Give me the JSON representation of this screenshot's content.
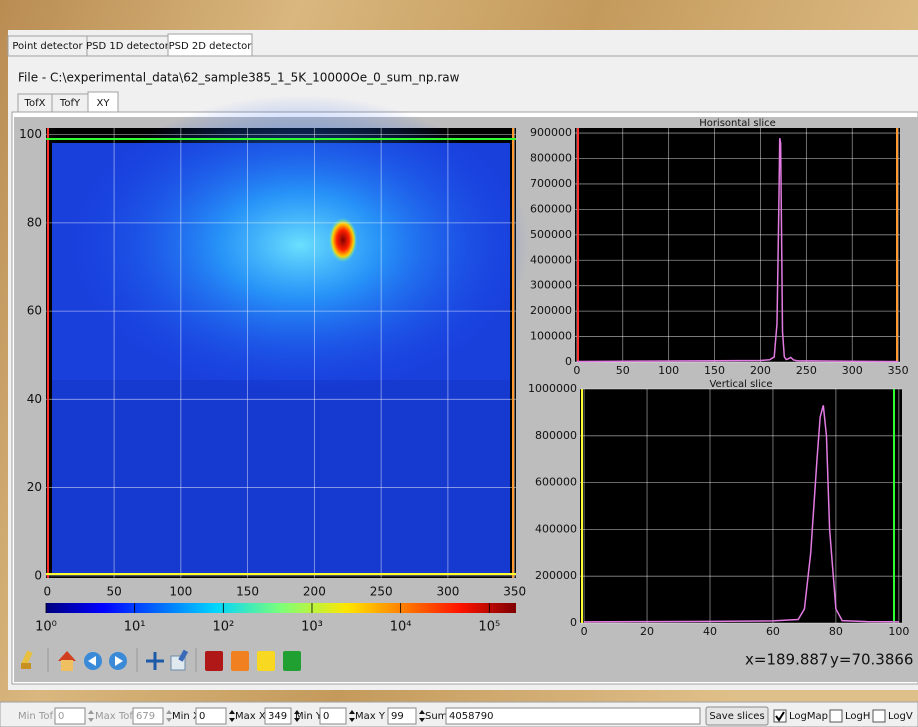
{
  "window": {
    "tabs": {
      "items": [
        "Point detector",
        "PSD 1D detector",
        "PSD 2D detector"
      ],
      "active": 2
    },
    "file_label": "File - C:\\experimental_data\\62_sample385_1_5K_10000Oe_0_sum_np.raw",
    "subtabs": {
      "items": [
        "TofX",
        "TofY",
        "XY"
      ],
      "active": 2
    },
    "map_plot": {
      "xlim": [
        -1,
        351
      ],
      "ylim": [
        -0.5,
        101.5
      ],
      "xticks": [
        0,
        50,
        100,
        150,
        200,
        250,
        300,
        350
      ],
      "yticks": [
        0,
        20,
        40,
        60,
        80,
        100
      ],
      "grid": true
    },
    "colorbar": {
      "scale": "log",
      "clim": [
        1,
        200000
      ],
      "ticks": [
        {
          "value": 1,
          "label": "10⁰"
        },
        {
          "value": 10,
          "label": "10¹"
        },
        {
          "value": 100,
          "label": "10²"
        },
        {
          "value": 1000,
          "label": "10³"
        },
        {
          "value": 10000,
          "label": "10⁴"
        },
        {
          "value": 100000,
          "label": "10⁵"
        }
      ]
    },
    "horizontal_slice": {
      "title": "Horisontal slice",
      "color": "#e27be2",
      "xlim": [
        -2,
        352
      ],
      "ylim": [
        0,
        920000
      ],
      "xticks": [
        0,
        50,
        100,
        150,
        200,
        250,
        300,
        350
      ],
      "yticks": [
        0,
        100000,
        200000,
        300000,
        400000,
        500000,
        600000,
        700000,
        800000,
        900000
      ],
      "grid": true,
      "x": [
        0,
        50,
        100,
        150,
        200,
        210,
        215,
        218,
        220,
        221,
        222,
        223,
        224,
        226,
        228,
        230,
        233,
        236,
        240,
        300,
        350
      ],
      "values": [
        2000,
        3000,
        4000,
        5000,
        6000,
        9000,
        20000,
        150000,
        600000,
        880000,
        860000,
        500000,
        120000,
        20000,
        10000,
        12000,
        18000,
        8000,
        5000,
        3000,
        2000
      ]
    },
    "vertical_slice": {
      "title": "Vertical slice",
      "color": "#e27be2",
      "xlim": [
        -1.3,
        101
      ],
      "ylim": [
        0,
        1000000
      ],
      "xticks": [
        0,
        20,
        40,
        60,
        80,
        100
      ],
      "yticks": [
        0,
        200000,
        400000,
        600000,
        800000,
        1000000
      ],
      "grid": true,
      "x": [
        0,
        20,
        40,
        60,
        68,
        70,
        72,
        74,
        75,
        76,
        77,
        78,
        80,
        82,
        90,
        100
      ],
      "values": [
        5000,
        6000,
        7000,
        9000,
        15000,
        60000,
        300000,
        700000,
        880000,
        930000,
        800000,
        400000,
        60000,
        10000,
        6000,
        5000
      ]
    },
    "coords": {
      "x": "x=189.887",
      "y": "y=70.3866"
    },
    "controls": [
      {
        "label": "Min Tof",
        "value": 0,
        "enabled": false
      },
      {
        "label": "Max Tof",
        "value": 679,
        "enabled": false
      },
      {
        "label": "Min X",
        "value": 0,
        "enabled": true
      },
      {
        "label": "Max X",
        "value": 349,
        "enabled": true
      },
      {
        "label": "Min Y",
        "value": 0,
        "enabled": true
      },
      {
        "label": "Max Y",
        "value": 99,
        "enabled": true
      },
      {
        "label": "Sum",
        "value": 4058790,
        "enabled": true
      }
    ],
    "save_button": "Save slices",
    "checkboxes": [
      {
        "label": "LogMap",
        "checked": true
      },
      {
        "label": "LogH",
        "checked": false
      },
      {
        "label": "LogV",
        "checked": false
      }
    ]
  }
}
